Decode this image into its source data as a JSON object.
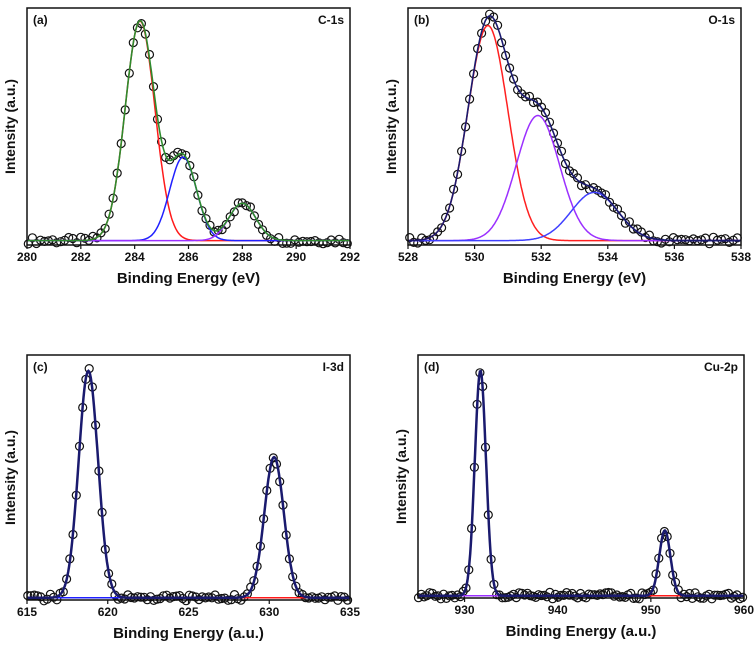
{
  "chart_data": [
    {
      "type": "line",
      "panel_label": "(a)",
      "title": "C-1s",
      "xlabel": "Binding Energy (eV)",
      "ylabel": "Intensity (a.u.)",
      "xlim": [
        280,
        292
      ],
      "xticks": [
        280,
        282,
        284,
        286,
        288,
        290,
        292
      ],
      "ylim": [
        0,
        1.08
      ],
      "baseline": 0.02,
      "envelope_color": "#2e8b2e",
      "components": [
        {
          "center": 284.2,
          "amplitude": 1.0,
          "sigma": 0.55,
          "color": "#ff1a1a"
        },
        {
          "center": 285.8,
          "amplitude": 0.38,
          "sigma": 0.5,
          "color": "#2020ff"
        },
        {
          "center": 288.0,
          "amplitude": 0.17,
          "sigma": 0.5,
          "color": "#9b30ff"
        }
      ],
      "points_step": 0.15
    },
    {
      "type": "line",
      "panel_label": "(b)",
      "title": "O-1s",
      "xlabel": "Binding Energy (eV)",
      "ylabel": "Intensity (a.u.)",
      "xlim": [
        528,
        538
      ],
      "xticks": [
        528,
        530,
        532,
        534,
        536,
        538
      ],
      "ylim": [
        0,
        1.08
      ],
      "baseline": 0.02,
      "envelope_color": "#1a1a6e",
      "components": [
        {
          "center": 530.4,
          "amplitude": 0.98,
          "sigma": 0.6,
          "color": "#ff2020"
        },
        {
          "center": 531.9,
          "amplitude": 0.57,
          "sigma": 0.65,
          "color": "#9b30ff"
        },
        {
          "center": 533.6,
          "amplitude": 0.22,
          "sigma": 0.7,
          "color": "#4040ff"
        }
      ],
      "points_step": 0.12
    },
    {
      "type": "line",
      "panel_label": "(c)",
      "title": "I-3d",
      "xlabel": "Binding Energy (a.u.)",
      "ylabel": "Intensity (a.u.)",
      "xlim": [
        615,
        635
      ],
      "xticks": [
        615,
        620,
        625,
        630,
        635
      ],
      "ylim": [
        0,
        1.08
      ],
      "baseline": 0.01,
      "envelope_color": "#1a1a6e",
      "components": [
        {
          "center": 618.8,
          "amplitude": 1.0,
          "sigma": 0.6,
          "color": "#ff1a1a"
        },
        {
          "center": 630.3,
          "amplitude": 0.62,
          "sigma": 0.6,
          "color": "#2020ff"
        }
      ],
      "points_step": 0.2
    },
    {
      "type": "line",
      "panel_label": "(d)",
      "title": "Cu-2p",
      "xlabel": "Binding Energy (a.u.)",
      "ylabel": "Intensity (a.u.)",
      "xlim": [
        925,
        960
      ],
      "xticks": [
        930,
        940,
        950,
        960
      ],
      "ylim": [
        0,
        1.08
      ],
      "baseline": 0.01,
      "envelope_color": "#1a1a6e",
      "components": [
        {
          "center": 931.7,
          "amplitude": 1.0,
          "sigma": 0.6,
          "color": "#ff1a1a"
        },
        {
          "center": 951.5,
          "amplitude": 0.29,
          "sigma": 0.6,
          "color": "#9b30ff"
        }
      ],
      "points_step": 0.3
    }
  ]
}
